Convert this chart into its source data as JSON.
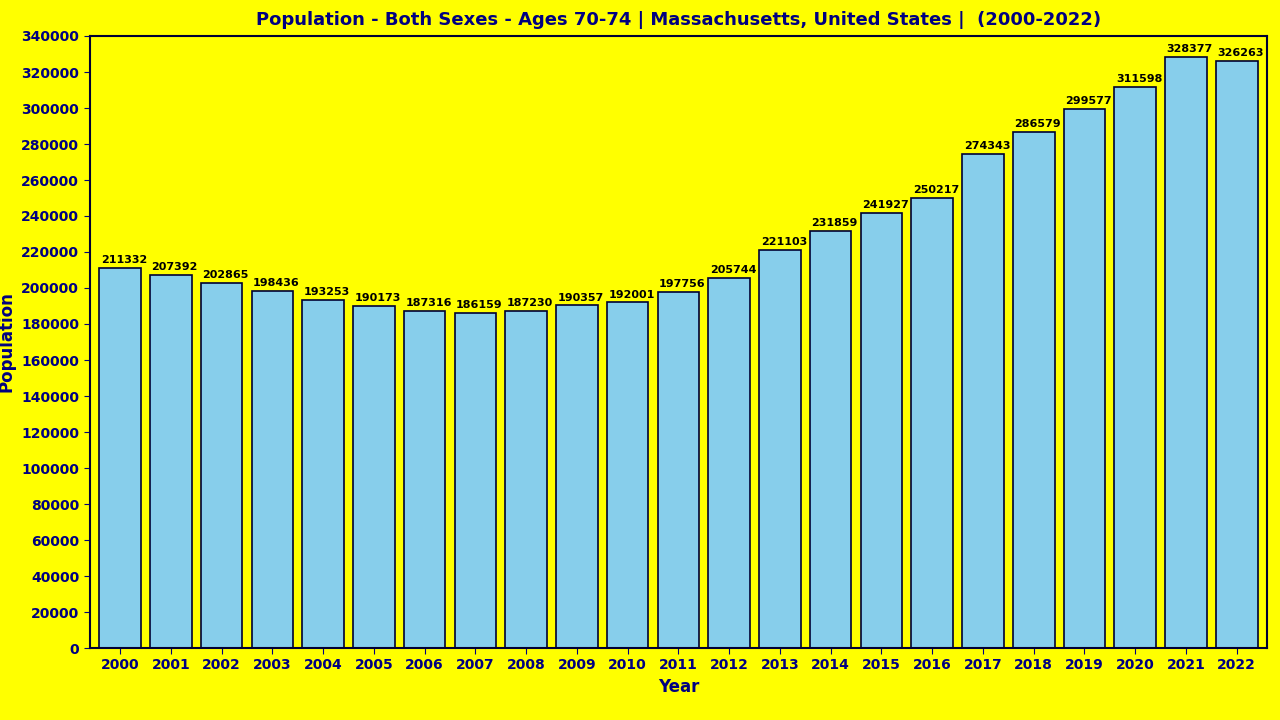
{
  "title": "Population - Both Sexes - Ages 70-74 | Massachusetts, United States |  (2000-2022)",
  "xlabel": "Year",
  "ylabel": "Population",
  "background_color": "#FFFF00",
  "bar_color": "#87CEEB",
  "bar_edge_color": "#000033",
  "years": [
    2000,
    2001,
    2002,
    2003,
    2004,
    2005,
    2006,
    2007,
    2008,
    2009,
    2010,
    2011,
    2012,
    2013,
    2014,
    2015,
    2016,
    2017,
    2018,
    2019,
    2020,
    2021,
    2022
  ],
  "values": [
    211332,
    207392,
    202865,
    198436,
    193253,
    190173,
    187316,
    186159,
    187230,
    190357,
    192001,
    197756,
    205744,
    221103,
    231859,
    241927,
    250217,
    274343,
    286579,
    299577,
    311598,
    328377,
    326263
  ],
  "ylim": [
    0,
    340000
  ],
  "yticks": [
    0,
    20000,
    40000,
    60000,
    80000,
    100000,
    120000,
    140000,
    160000,
    180000,
    200000,
    220000,
    240000,
    260000,
    280000,
    300000,
    320000,
    340000
  ],
  "title_color": "#000080",
  "axis_label_color": "#000080",
  "tick_label_color": "#000080",
  "value_label_color": "#000000",
  "title_fontsize": 13,
  "axis_label_fontsize": 12,
  "tick_fontsize": 10,
  "value_label_fontsize": 8.0
}
